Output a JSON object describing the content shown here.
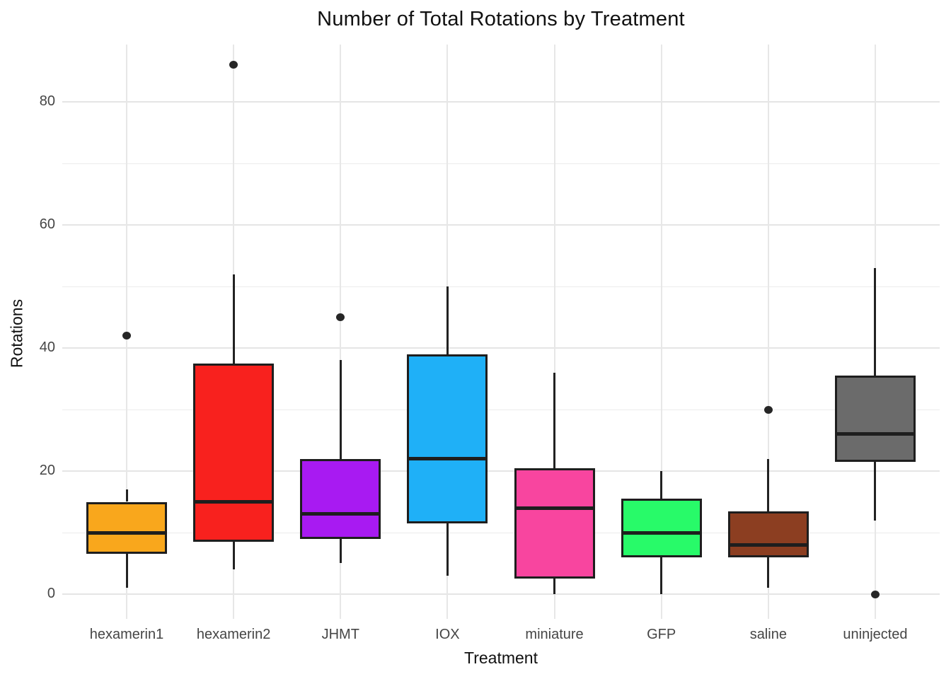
{
  "title": "Number of Total Rotations by Treatment",
  "chart_data": {
    "type": "boxplot",
    "title": "Number of Total Rotations by Treatment",
    "xlabel": "Treatment",
    "ylabel": "Rotations",
    "y_ticks": [
      0,
      20,
      40,
      60,
      80
    ],
    "y_minor_ticks": [
      10,
      30,
      50,
      70
    ],
    "ylim": [
      0,
      89
    ],
    "grid": true,
    "legend": "none",
    "gridline_color": "#E5E5E5",
    "box_border_color": "#1E1E1E",
    "categories": [
      "hexamerin1",
      "hexamerin2",
      "JHMT",
      "IOX",
      "miniature",
      "GFP",
      "saline",
      "uninjected"
    ],
    "series": [
      {
        "name": "hexamerin1",
        "color": "#F9A71C",
        "min": 1,
        "q1": 6.5,
        "median": 10,
        "q3": 15,
        "max": 17,
        "outliers": [
          42
        ]
      },
      {
        "name": "hexamerin2",
        "color": "#F8211E",
        "min": 4,
        "q1": 8.5,
        "median": 15,
        "q3": 37.5,
        "max": 52,
        "outliers": [
          86
        ]
      },
      {
        "name": "JHMT",
        "color": "#A81AF2",
        "min": 5,
        "q1": 9,
        "median": 13,
        "q3": 22,
        "max": 38,
        "outliers": [
          45
        ]
      },
      {
        "name": "IOX",
        "color": "#1FB0F7",
        "min": 3,
        "q1": 11.5,
        "median": 22,
        "q3": 39,
        "max": 50,
        "outliers": []
      },
      {
        "name": "miniature",
        "color": "#F8459F",
        "min": 0,
        "q1": 2.5,
        "median": 14,
        "q3": 20.5,
        "max": 36,
        "outliers": []
      },
      {
        "name": "GFP",
        "color": "#28FA69",
        "min": 0,
        "q1": 6,
        "median": 10,
        "q3": 15.5,
        "max": 20,
        "outliers": []
      },
      {
        "name": "saline",
        "color": "#8C3E21",
        "min": 1,
        "q1": 6,
        "median": 8,
        "q3": 13.5,
        "max": 22,
        "outliers": [
          30
        ]
      },
      {
        "name": "uninjected",
        "color": "#6B6B6B",
        "min": 12,
        "q1": 21.5,
        "median": 26,
        "q3": 35.5,
        "max": 53,
        "outliers": [
          0
        ]
      }
    ]
  }
}
